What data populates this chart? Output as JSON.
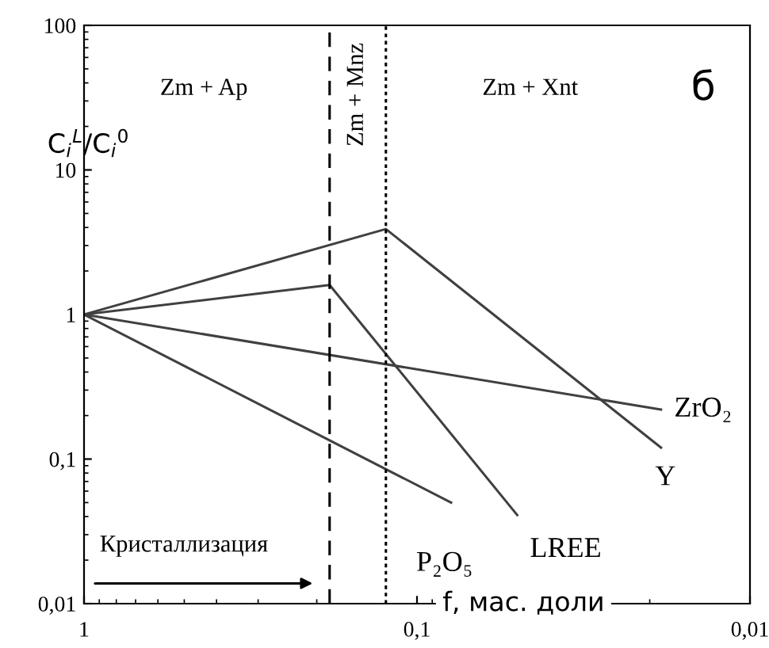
{
  "chart_data": {
    "type": "line",
    "xlabel": "f, мас. доли",
    "ylabel": "C$_{i}$$^{L}$/C$_{i}$$^{0}$",
    "log": "xy",
    "xlim": [
      1,
      0.01
    ],
    "xticks": [
      1,
      {
        "value": 0.1,
        "label": "0,1"
      },
      {
        "value": 0.01,
        "label": "0,01"
      }
    ],
    "ylim": [
      0.01,
      100
    ],
    "yticks": [
      {
        "value": 0.01,
        "label": "0,01"
      },
      {
        "value": 0.1,
        "label": "0,1"
      },
      1,
      10,
      100
    ],
    "grid": false,
    "legend": false,
    "marker": "none",
    "line_style": "solid",
    "series": [
      {
        "name": "Y",
        "color": "#404040",
        "x": [
          1,
          0.124,
          0.0185
        ],
        "values": [
          1,
          3.9,
          0.12
        ]
      },
      {
        "name": "LREE",
        "color": "#404040",
        "x": [
          1,
          0.183,
          0.05
        ],
        "values": [
          1,
          1.6,
          0.041
        ]
      },
      {
        "name": "ZrO₂",
        "color": "#404040",
        "x": [
          1,
          0.0185
        ],
        "values": [
          1,
          0.22
        ]
      },
      {
        "name": "P₂O₅",
        "color": "#404040",
        "x": [
          1,
          0.079
        ],
        "values": [
          1,
          0.05
        ]
      }
    ],
    "ref_lines": [
      {
        "axis": "x",
        "value": 0.183,
        "line_style": "dashed",
        "color": "#000000"
      },
      {
        "axis": "x",
        "value": 0.124,
        "line_style": "dotted",
        "color": "#000000"
      }
    ],
    "annotations": [
      "Zm + Ap",
      "Zm + Mnz",
      "Zm + Xnt",
      "б",
      "Кристаллизация"
    ]
  }
}
